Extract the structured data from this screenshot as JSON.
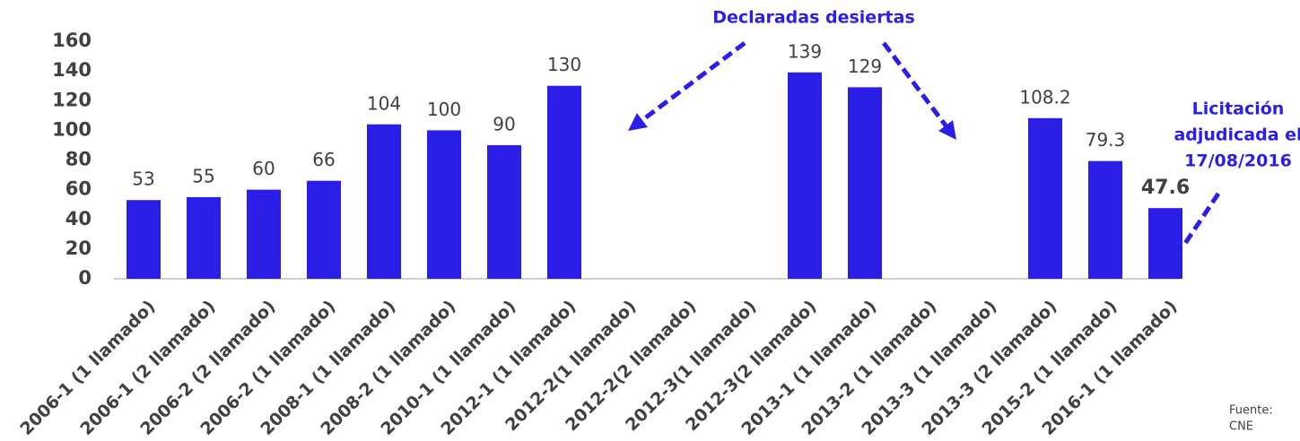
{
  "chart_data": {
    "type": "bar",
    "categories": [
      "2006-1 (1 llamado)",
      "2006-1 (2 llamado)",
      "2006-2 (2 llamado)",
      "2006-2 (1 llamado)",
      "2008-1 (1 llamado)",
      "2008-2 (1 llamado)",
      "2010-1 (1 llamado)",
      "2012-1 (1 llamado)",
      "2012-2(1 llamado)",
      "2012-2(2 llamado)",
      "2012-3(1 llamado)",
      "2012-3(2 llamado)",
      "2013-1 (1 llamado)",
      "2013-2 (1 llamado)",
      "2013-3 (1 llamado)",
      "2013-3 (2 llamado)",
      "2015-2 (1 llamado)",
      "2016-1 (1 llamado)"
    ],
    "values": [
      53,
      55,
      60,
      66,
      104,
      100,
      90,
      130,
      null,
      null,
      null,
      139,
      129,
      null,
      null,
      108.2,
      79.3,
      47.6
    ],
    "color": "#2b1ee6",
    "ylim": [
      0,
      160
    ],
    "yticks": [
      0,
      20,
      40,
      60,
      80,
      100,
      120,
      140,
      160
    ],
    "grid": false,
    "annotations": [
      "Declaradas desiertas",
      "Licitación",
      "adjudicada el",
      "17/08/2016"
    ],
    "source": [
      "Fuente:",
      "CNE"
    ]
  }
}
